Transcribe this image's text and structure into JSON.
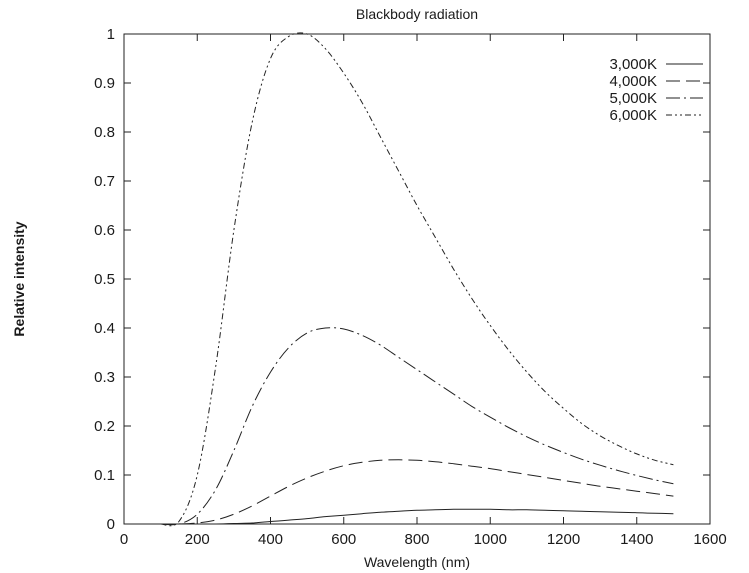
{
  "chart_data": {
    "type": "line",
    "title": "Blackbody radiation",
    "xlabel": "Wavelength (nm)",
    "ylabel": "Relative intensity",
    "xlim": [
      0,
      1600
    ],
    "ylim": [
      0,
      1
    ],
    "x_ticks": [
      0,
      200,
      400,
      600,
      800,
      1000,
      1200,
      1400,
      1600
    ],
    "y_ticks": [
      0,
      0.1,
      0.2,
      0.3,
      0.4,
      0.5,
      0.6,
      0.7,
      0.8,
      0.9,
      1
    ],
    "x_tick_labels": [
      "0",
      "200",
      "400",
      "600",
      "800",
      "1000",
      "1200",
      "1400",
      "1600"
    ],
    "y_tick_labels": [
      "0",
      "0.1",
      "0.2",
      "0.3",
      "0.4",
      "0.5",
      "0.6",
      "0.7",
      "0.8",
      "0.9",
      "1"
    ],
    "grid": false,
    "legend_position": "top-right",
    "x": [
      100,
      150,
      200,
      250,
      300,
      350,
      400,
      450,
      500,
      550,
      600,
      650,
      700,
      750,
      800,
      850,
      900,
      950,
      1000,
      1050,
      1100,
      1150,
      1200,
      1250,
      1300,
      1350,
      1400,
      1450,
      1500
    ],
    "series": [
      {
        "name": "3,000K",
        "dash": "",
        "values": [
          0,
          0,
          0,
          0,
          0.001,
          0.002,
          0.005,
          0.008,
          0.011,
          0.015,
          0.018,
          0.021,
          0.024,
          0.026,
          0.028,
          0.029,
          0.03,
          0.03,
          0.03,
          0.029,
          0.029,
          0.028,
          0.027,
          0.026,
          0.025,
          0.024,
          0.023,
          0.022,
          0.021
        ]
      },
      {
        "name": "4,000K",
        "dash": "14 6",
        "values": [
          0,
          0,
          0.002,
          0.008,
          0.02,
          0.037,
          0.057,
          0.077,
          0.094,
          0.108,
          0.119,
          0.126,
          0.13,
          0.131,
          0.13,
          0.127,
          0.123,
          0.118,
          0.113,
          0.107,
          0.101,
          0.095,
          0.089,
          0.083,
          0.077,
          0.072,
          0.067,
          0.062,
          0.057
        ]
      },
      {
        "name": "5,000K",
        "dash": "14 4 2 4",
        "values": [
          0,
          0,
          0.02,
          0.07,
          0.15,
          0.24,
          0.31,
          0.36,
          0.39,
          0.4,
          0.398,
          0.385,
          0.365,
          0.34,
          0.315,
          0.29,
          0.265,
          0.24,
          0.218,
          0.197,
          0.178,
          0.161,
          0.146,
          0.132,
          0.12,
          0.109,
          0.099,
          0.09,
          0.082
        ]
      },
      {
        "name": "6,000K",
        "dash": "6 3 2 3 2 3",
        "values": [
          0,
          0.005,
          0.1,
          0.32,
          0.6,
          0.82,
          0.95,
          0.995,
          1.0,
          0.97,
          0.92,
          0.86,
          0.79,
          0.72,
          0.65,
          0.585,
          0.52,
          0.46,
          0.405,
          0.355,
          0.31,
          0.27,
          0.236,
          0.205,
          0.18,
          0.16,
          0.143,
          0.13,
          0.121
        ]
      }
    ]
  }
}
